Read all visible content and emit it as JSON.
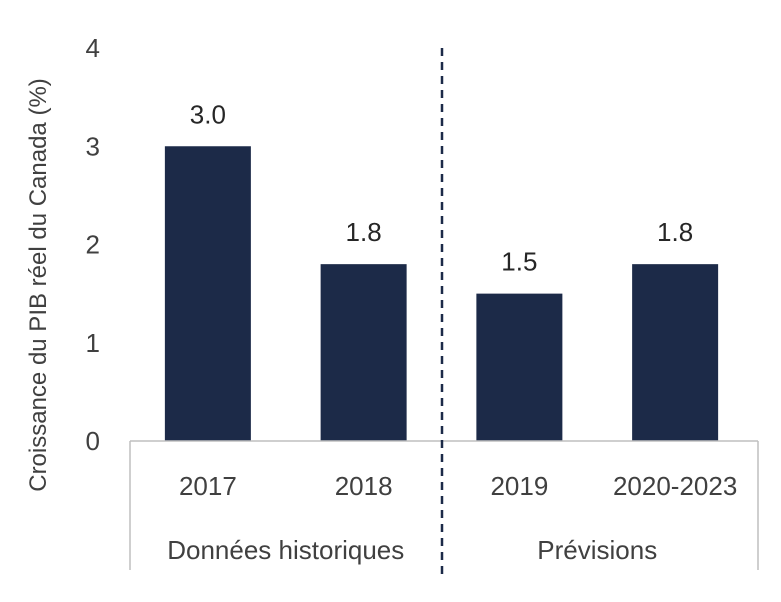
{
  "chart_data": {
    "type": "bar",
    "categories": [
      "2017",
      "2018",
      "2019",
      "2020-2023"
    ],
    "values": [
      3.0,
      1.8,
      1.5,
      1.8
    ],
    "data_labels": [
      "3.0",
      "1.8",
      "1.5",
      "1.8"
    ],
    "groups": [
      {
        "label": "Données historiques",
        "categories": [
          "2017",
          "2018"
        ]
      },
      {
        "label": "Prévisions",
        "categories": [
          "2019",
          "2020-2023"
        ]
      }
    ],
    "ylabel": "Croissance du PIB réel du Canada (%)",
    "ylim": [
      0,
      4
    ],
    "yticks": [
      "0",
      "1",
      "2",
      "3",
      "4"
    ],
    "bar_color": "#1c2a48",
    "divider_style": "dashed",
    "grid": false,
    "legend": "none"
  }
}
